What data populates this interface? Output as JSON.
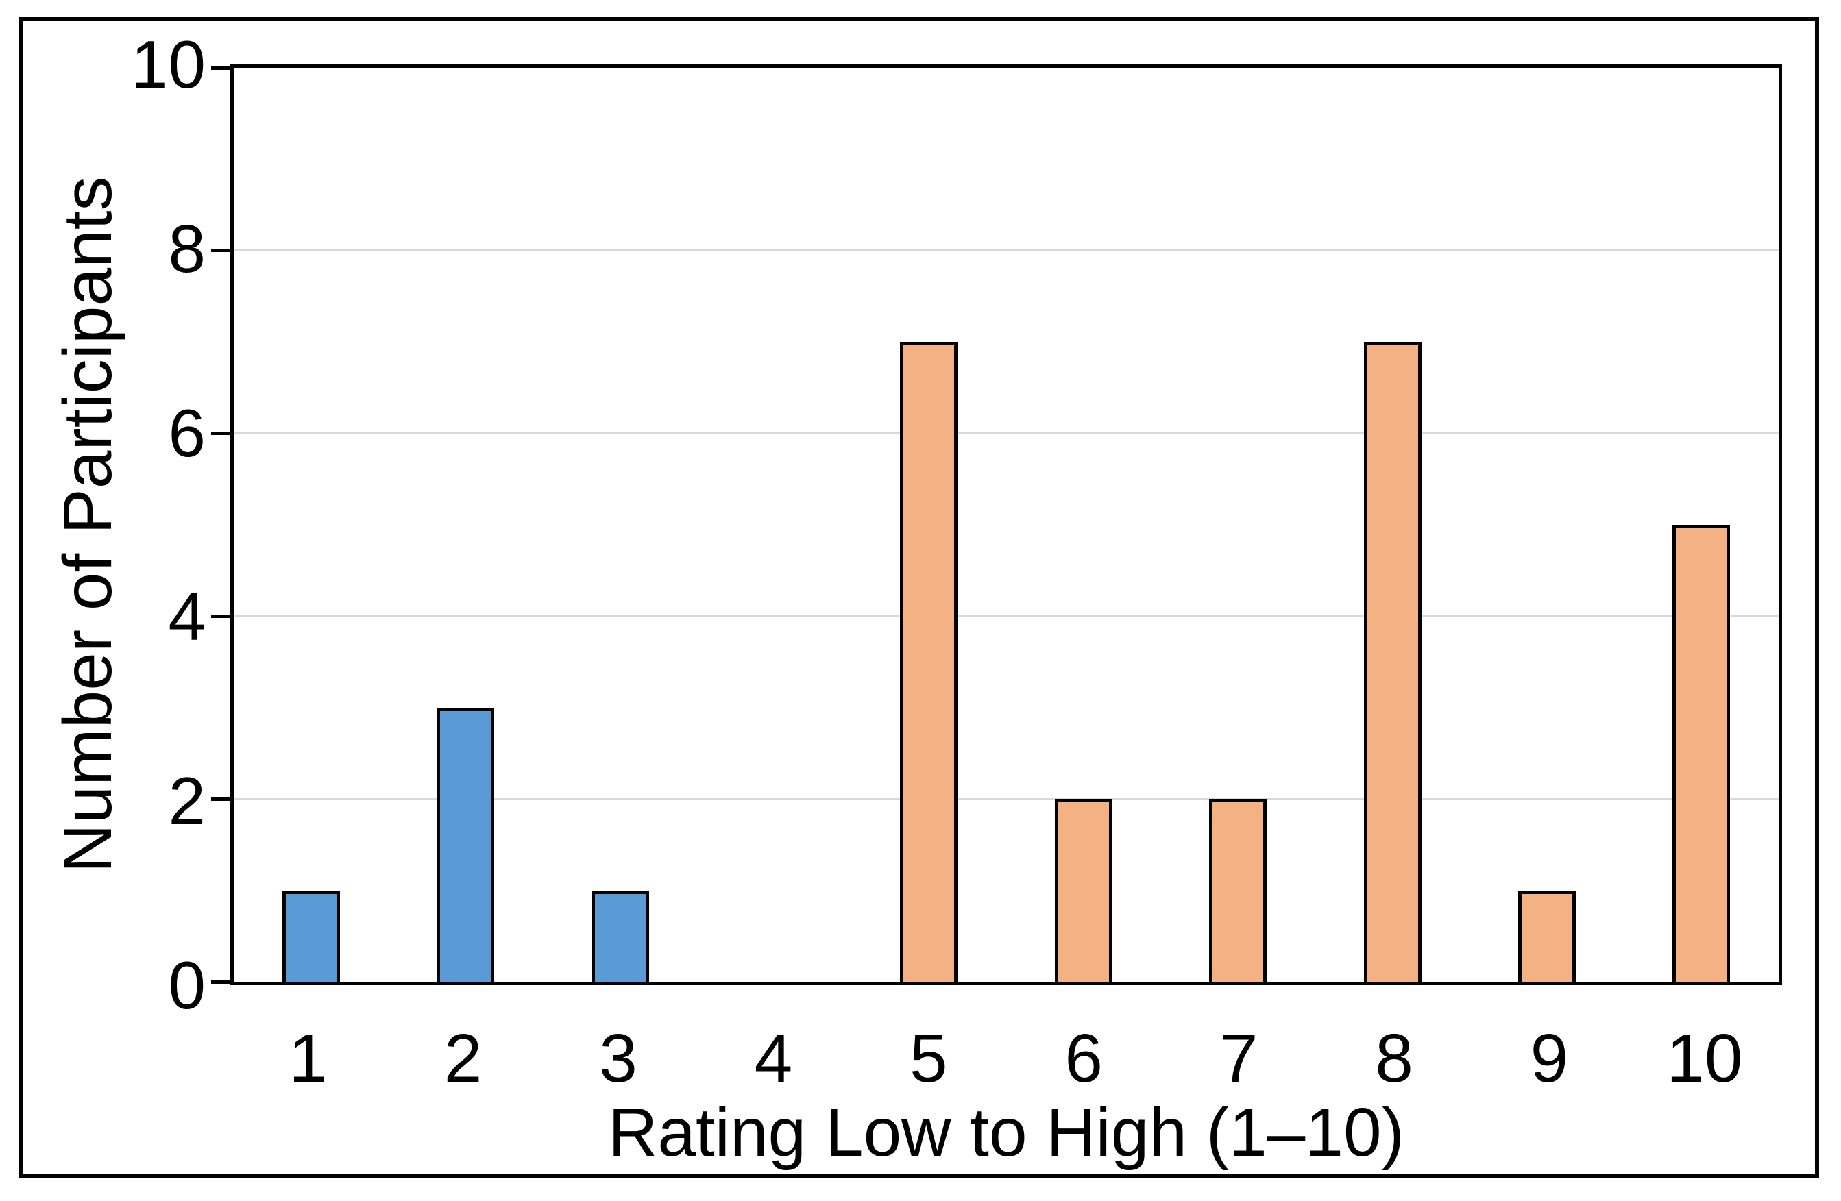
{
  "chart_data": {
    "type": "bar",
    "title": "",
    "xlabel": "Rating Low to High (1–10)",
    "ylabel": "Number of Participants",
    "categories": [
      "1",
      "2",
      "3",
      "4",
      "5",
      "6",
      "7",
      "8",
      "9",
      "10"
    ],
    "values": [
      1,
      3,
      1,
      0,
      7,
      2,
      2,
      7,
      1,
      5
    ],
    "bar_colors": [
      "#5B9BD5",
      "#5B9BD5",
      "#5B9BD5",
      "#5B9BD5",
      "#F4B183",
      "#F4B183",
      "#F4B183",
      "#F4B183",
      "#F4B183",
      "#F4B183"
    ],
    "bar_border_color": "#000000",
    "ylim": [
      0,
      10
    ],
    "yticks": [
      0,
      2,
      4,
      6,
      8,
      10
    ],
    "gridlines_at": [
      2,
      4,
      6,
      8
    ],
    "gridline_color": "#D9D9D9",
    "axis_color": "#000000",
    "figure_border_color": "#000000",
    "grid": true,
    "legend": "none"
  }
}
